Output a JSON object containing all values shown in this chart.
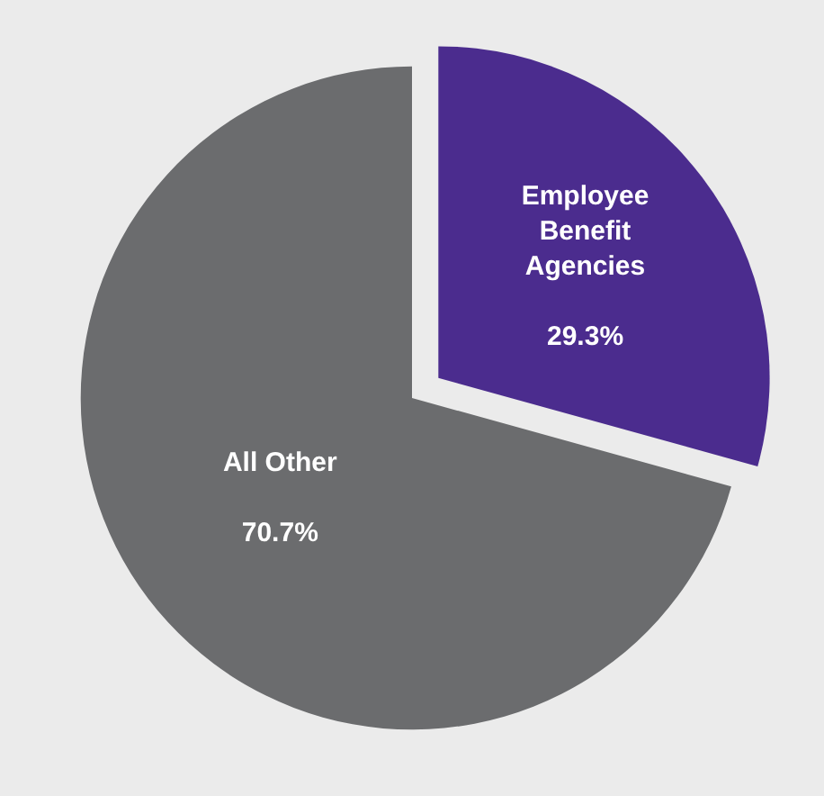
{
  "chart_data": {
    "type": "pie",
    "categories": [
      "Employee Benefit Agencies",
      "All Other"
    ],
    "values": [
      29.3,
      70.7
    ],
    "colors": [
      "#4b2c8e",
      "#6b6c6e"
    ],
    "value_labels": [
      "29.3%",
      "70.7%"
    ],
    "legend": false
  }
}
